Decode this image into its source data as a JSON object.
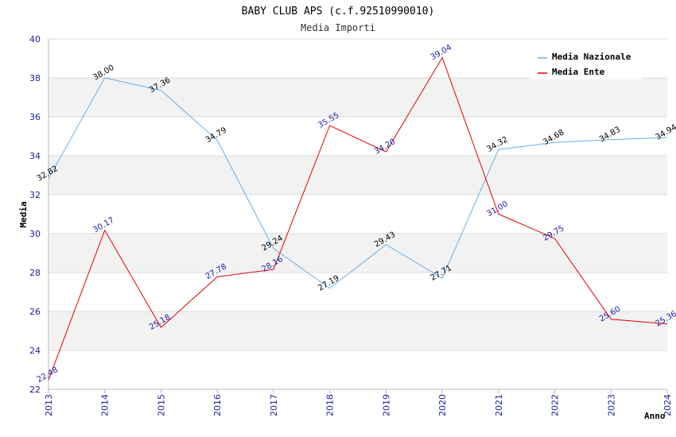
{
  "chart_data": {
    "type": "line",
    "title": "BABY CLUB APS (c.f.92510990010)",
    "subtitle": "Media Importi",
    "xlabel": "Anno",
    "ylabel": "Media",
    "ylim": [
      22,
      40
    ],
    "yticks": [
      "22",
      "24",
      "26",
      "28",
      "30",
      "32",
      "34",
      "36",
      "38",
      "40"
    ],
    "categories": [
      "2013",
      "2014",
      "2015",
      "2016",
      "2017",
      "2018",
      "2019",
      "2020",
      "2021",
      "2022",
      "2023",
      "2024"
    ],
    "grid": true,
    "legend_position": "top-right",
    "series": [
      {
        "name": "Media Nazionale",
        "color": "#6aaee6",
        "values": [
          32.82,
          38.0,
          37.36,
          34.79,
          29.24,
          27.19,
          29.43,
          27.71,
          34.32,
          34.68,
          34.83,
          34.94
        ],
        "labels": [
          "32.82",
          "38.00",
          "37.36",
          "34.79",
          "29.24",
          "27.19",
          "29.43",
          "27.71",
          "34.32",
          "34.68",
          "34.83",
          "34.94"
        ]
      },
      {
        "name": "Media Ente",
        "color": "#e00000",
        "values": [
          22.48,
          30.17,
          25.18,
          27.78,
          28.16,
          35.55,
          34.2,
          39.04,
          31.0,
          29.75,
          25.6,
          25.36
        ],
        "labels": [
          "22.48",
          "30.17",
          "25.18",
          "27.78",
          "28.16",
          "35.55",
          "34.20",
          "39.04",
          "31.00",
          "29.75",
          "25.60",
          "25.36"
        ]
      }
    ]
  }
}
